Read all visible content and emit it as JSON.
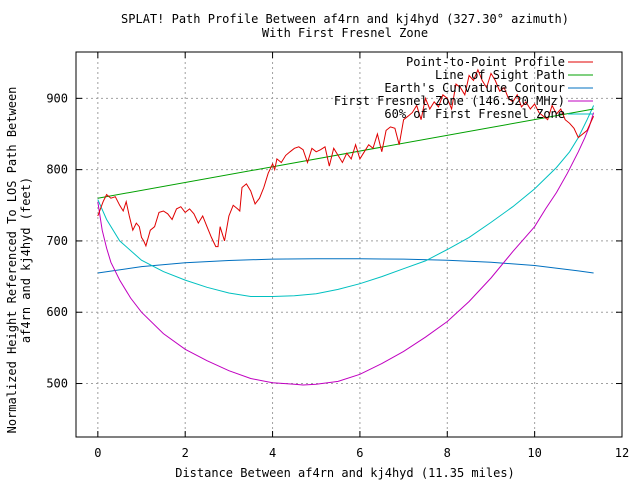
{
  "chart_data": {
    "type": "line",
    "title": "SPLAT! Path Profile Between af4rn and kj4hyd (327.30° azimuth)",
    "subtitle": "With First Fresnel Zone",
    "xlabel": "Distance Between af4rn and kj4hyd (11.35 miles)",
    "ylabel_line1": "Normalized Height Referenced To LOS Path Between",
    "ylabel_line2": "af4rn and kj4hyd (feet)",
    "xlim": [
      -0.5,
      12
    ],
    "ylim": [
      425,
      965
    ],
    "xticks": [
      0,
      2,
      4,
      6,
      8,
      10,
      12
    ],
    "yticks": [
      500,
      600,
      700,
      800,
      900
    ],
    "grid": true,
    "legend_position": "top-right",
    "colors": {
      "profile": "#e00000",
      "los": "#00a000",
      "curvature": "#0070c0",
      "fresnel": "#c000c0",
      "fresnel60": "#00c0c0"
    },
    "series": [
      {
        "name": "Point-to-Point Profile",
        "key": "profile",
        "x": [
          0.0,
          0.12,
          0.2,
          0.3,
          0.4,
          0.5,
          0.58,
          0.65,
          0.72,
          0.8,
          0.88,
          0.95,
          1.0,
          1.05,
          1.1,
          1.2,
          1.3,
          1.4,
          1.5,
          1.6,
          1.7,
          1.8,
          1.9,
          2.0,
          2.1,
          2.2,
          2.3,
          2.4,
          2.5,
          2.6,
          2.7,
          2.75,
          2.8,
          2.9,
          3.0,
          3.1,
          3.2,
          3.25,
          3.3,
          3.4,
          3.5,
          3.6,
          3.7,
          3.8,
          3.9,
          4.0,
          4.05,
          4.1,
          4.2,
          4.3,
          4.4,
          4.5,
          4.6,
          4.7,
          4.8,
          4.9,
          5.0,
          5.1,
          5.2,
          5.3,
          5.4,
          5.5,
          5.6,
          5.7,
          5.8,
          5.9,
          6.0,
          6.1,
          6.2,
          6.3,
          6.4,
          6.5,
          6.6,
          6.7,
          6.8,
          6.9,
          7.0,
          7.1,
          7.2,
          7.3,
          7.4,
          7.5,
          7.6,
          7.7,
          7.8,
          7.9,
          8.0,
          8.1,
          8.2,
          8.3,
          8.4,
          8.5,
          8.6,
          8.7,
          8.8,
          8.9,
          9.0,
          9.1,
          9.2,
          9.3,
          9.4,
          9.5,
          9.6,
          9.7,
          9.8,
          9.9,
          10.0,
          10.1,
          10.2,
          10.3,
          10.4,
          10.5,
          10.6,
          10.7,
          10.8,
          10.9,
          11.0,
          11.1,
          11.2,
          11.35
        ],
        "y": [
          735,
          755,
          765,
          760,
          762,
          750,
          742,
          755,
          735,
          715,
          725,
          720,
          705,
          700,
          693,
          715,
          720,
          740,
          742,
          738,
          730,
          745,
          748,
          740,
          745,
          738,
          725,
          735,
          720,
          705,
          692,
          692,
          720,
          700,
          735,
          750,
          745,
          742,
          775,
          780,
          770,
          752,
          760,
          775,
          795,
          808,
          800,
          815,
          810,
          820,
          825,
          830,
          832,
          828,
          810,
          830,
          825,
          828,
          832,
          805,
          830,
          820,
          810,
          823,
          815,
          835,
          815,
          825,
          835,
          830,
          850,
          825,
          855,
          860,
          858,
          835,
          870,
          875,
          880,
          890,
          870,
          900,
          885,
          895,
          888,
          905,
          900,
          885,
          920,
          915,
          905,
          932,
          925,
          940,
          925,
          915,
          935,
          925,
          910,
          915,
          900,
          895,
          905,
          888,
          895,
          885,
          892,
          880,
          875,
          870,
          890,
          878,
          885,
          870,
          865,
          858,
          845,
          850,
          855,
          875
        ]
      },
      {
        "name": "Line of Sight Path",
        "key": "los",
        "x": [
          0,
          11.35
        ],
        "y": [
          760,
          885
        ]
      },
      {
        "name": "Earth's Curvature Contour",
        "key": "curvature",
        "x": [
          0,
          1,
          2,
          3,
          4,
          5,
          6,
          7,
          8,
          9,
          10,
          11,
          11.35
        ],
        "y": [
          655,
          664,
          669.5,
          672.5,
          674.5,
          675,
          675,
          674.5,
          673,
          670,
          665.5,
          658,
          655
        ]
      },
      {
        "name": "First Fresnel Zone (146.520 MHz)",
        "key": "fresnel",
        "x": [
          0,
          0.05,
          0.1,
          0.2,
          0.3,
          0.5,
          0.75,
          1,
          1.5,
          2,
          2.5,
          3,
          3.5,
          4,
          4.5,
          4.7,
          5,
          5.5,
          6,
          6.5,
          7,
          7.5,
          8,
          8.5,
          9,
          9.5,
          10,
          10.25,
          10.5,
          10.75,
          11,
          11.15,
          11.25,
          11.35
        ],
        "y": [
          755,
          735,
          715,
          690,
          670,
          645,
          620,
          600,
          570,
          548,
          532,
          518,
          507,
          501,
          499,
          498,
          499,
          503,
          513,
          528,
          545,
          565,
          587,
          615,
          648,
          685,
          720,
          745,
          768,
          795,
          825,
          845,
          860,
          880
        ]
      },
      {
        "name": "60% of First Fresnel Zone",
        "key": "fresnel60",
        "x": [
          0,
          0.2,
          0.5,
          1,
          1.5,
          2,
          2.5,
          3,
          3.5,
          4,
          4.5,
          5,
          5.5,
          6,
          6.5,
          7,
          7.5,
          8,
          8.5,
          9,
          9.5,
          10,
          10.5,
          10.8,
          11,
          11.2,
          11.35
        ],
        "y": [
          758,
          730,
          700,
          673,
          657,
          645,
          635,
          627,
          622,
          622,
          623,
          626,
          632,
          640,
          650,
          661,
          672,
          688,
          705,
          726,
          748,
          773,
          803,
          825,
          845,
          870,
          890
        ]
      }
    ]
  }
}
